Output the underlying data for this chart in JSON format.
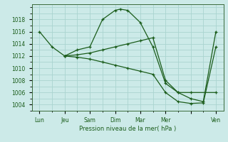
{
  "background_color": "#cceae8",
  "grid_color": "#aad4d0",
  "line_color": "#1a5c1a",
  "x_labels": [
    "Lun",
    "Jeu",
    "Sam",
    "Dim",
    "Mar",
    "Mer",
    "",
    "Ven"
  ],
  "x_positions": [
    0,
    1,
    2,
    3,
    4,
    5,
    6,
    7
  ],
  "ylim": [
    1003.0,
    1020.5
  ],
  "yticks": [
    1004,
    1006,
    1008,
    1010,
    1012,
    1014,
    1016,
    1018
  ],
  "xlabel": "Pression niveau de la mer( hPa )",
  "lines": [
    {
      "x": [
        0,
        0.5,
        1,
        1.5,
        2,
        2.5,
        3,
        3.2,
        3.5,
        4,
        4.5,
        5,
        5.5,
        6,
        7
      ],
      "y": [
        1016,
        1013.5,
        1012,
        1013,
        1013.5,
        1018,
        1019.5,
        1019.7,
        1019.5,
        1017.5,
        1013.5,
        1007.5,
        1006,
        1006,
        1006
      ]
    },
    {
      "x": [
        1,
        1.5,
        2,
        2.5,
        3,
        3.5,
        4,
        4.5,
        5,
        5.5,
        6,
        6.5,
        7
      ],
      "y": [
        1012,
        1012.2,
        1012.5,
        1013,
        1013.5,
        1014,
        1014.5,
        1015,
        1008,
        1006,
        1005,
        1004.5,
        1016
      ]
    },
    {
      "x": [
        1,
        1.5,
        2,
        2.5,
        3,
        3.5,
        4,
        4.5,
        5,
        5.5,
        6,
        6.5,
        7
      ],
      "y": [
        1012,
        1011.8,
        1011.5,
        1011,
        1010.5,
        1010,
        1009.5,
        1009,
        1006,
        1004.5,
        1004.2,
        1004.3,
        1013.5
      ]
    }
  ]
}
